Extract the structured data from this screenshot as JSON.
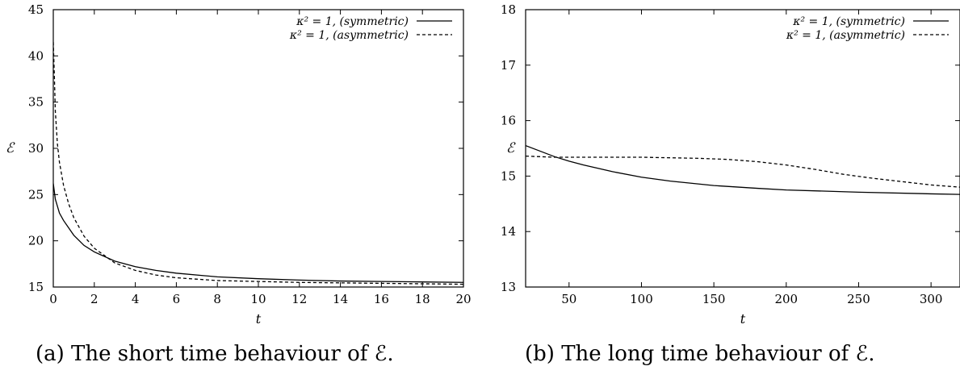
{
  "chart_data": [
    {
      "type": "line",
      "panel": "(a)",
      "caption": "(a) The short time behaviour of ℰ.",
      "xlabel": "t",
      "ylabel": "ℰ",
      "xlim": [
        0,
        20
      ],
      "ylim": [
        15,
        45
      ],
      "xticks": [
        0,
        2,
        4,
        6,
        8,
        10,
        12,
        14,
        16,
        18,
        20
      ],
      "yticks": [
        15,
        20,
        25,
        30,
        35,
        40,
        45
      ],
      "grid": false,
      "legend_position": "top-right",
      "series": [
        {
          "name": "κ² = 1, (symmetric)",
          "style": "solid",
          "x": [
            0,
            0.1,
            0.3,
            0.5,
            1,
            1.5,
            2,
            3,
            4,
            5,
            6,
            8,
            10,
            12,
            14,
            16,
            18,
            20
          ],
          "y": [
            26.2,
            24.5,
            23.0,
            22.2,
            20.6,
            19.5,
            18.8,
            17.8,
            17.2,
            16.8,
            16.5,
            16.1,
            15.9,
            15.75,
            15.65,
            15.6,
            15.55,
            15.5
          ]
        },
        {
          "name": "κ² = 1, (asymmetric)",
          "style": "dashed",
          "x": [
            0,
            0.05,
            0.1,
            0.2,
            0.3,
            0.5,
            0.75,
            1,
            1.5,
            2,
            3,
            4,
            5,
            6,
            8,
            10,
            12,
            14,
            16,
            18,
            20
          ],
          "y": [
            41.5,
            38.0,
            34.0,
            30.5,
            28.5,
            26.0,
            24.0,
            22.5,
            20.5,
            19.2,
            17.6,
            16.8,
            16.3,
            16.0,
            15.7,
            15.6,
            15.5,
            15.45,
            15.4,
            15.35,
            15.3
          ]
        }
      ]
    },
    {
      "type": "line",
      "panel": "(b)",
      "caption": "(b) The long time behaviour of ℰ.",
      "xlabel": "t",
      "ylabel": "ℰ",
      "xlim": [
        20,
        320
      ],
      "ylim": [
        13,
        18
      ],
      "xticks": [
        50,
        100,
        150,
        200,
        250,
        300
      ],
      "yticks": [
        13,
        14,
        15,
        16,
        17,
        18
      ],
      "grid": false,
      "legend_position": "top-right",
      "series": [
        {
          "name": "κ² = 1, (symmetric)",
          "style": "solid",
          "x": [
            20,
            30,
            40,
            50,
            60,
            80,
            100,
            120,
            150,
            180,
            200,
            250,
            300,
            320
          ],
          "y": [
            15.55,
            15.45,
            15.35,
            15.27,
            15.2,
            15.08,
            14.98,
            14.91,
            14.83,
            14.78,
            14.75,
            14.71,
            14.68,
            14.67
          ]
        },
        {
          "name": "κ² = 1, (asymmetric)",
          "style": "dashed",
          "x": [
            20,
            40,
            60,
            80,
            100,
            120,
            140,
            160,
            180,
            200,
            220,
            240,
            260,
            280,
            300,
            320
          ],
          "y": [
            15.36,
            15.34,
            15.34,
            15.34,
            15.34,
            15.33,
            15.32,
            15.3,
            15.26,
            15.2,
            15.12,
            15.03,
            14.96,
            14.9,
            14.84,
            14.8
          ]
        }
      ]
    }
  ]
}
